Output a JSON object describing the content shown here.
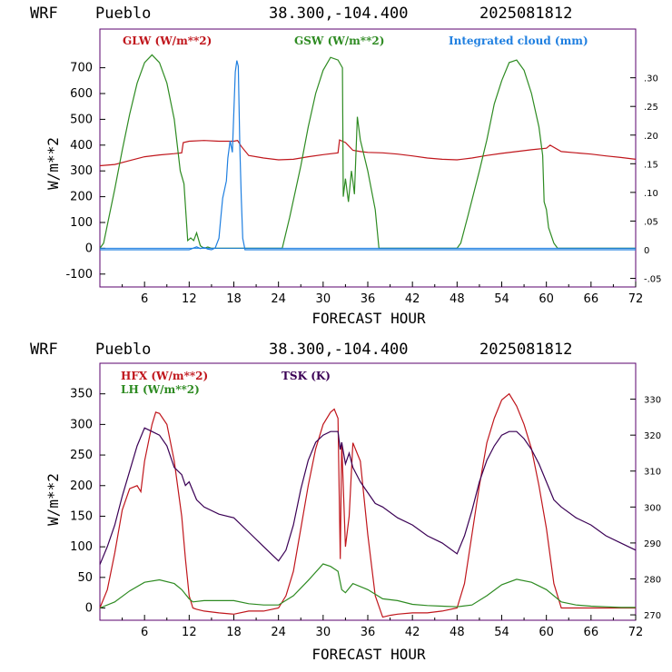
{
  "panel1": {
    "model": "WRF",
    "station": "Pueblo",
    "coords": "38.300,-104.400",
    "run": "2025081812",
    "frame_color": "#5a006e",
    "legend": [
      {
        "label": "GLW (W/m**2)",
        "color": "#c0161c"
      },
      {
        "label": "GSW (W/m**2)",
        "color": "#2e8b22"
      },
      {
        "label": "Integrated cloud (mm)",
        "color": "#1f7fe0"
      }
    ],
    "xlabel": "FORECAST HOUR",
    "ylabel": "W/m**2",
    "xticks": [
      "6",
      "12",
      "18",
      "24",
      "30",
      "36",
      "42",
      "48",
      "54",
      "60",
      "66",
      "72"
    ],
    "yticks": [
      "700",
      "600",
      "500",
      "400",
      "300",
      "200",
      "100",
      "0",
      "-100"
    ],
    "rticks": [
      ".30",
      ".25",
      ".20",
      ".15",
      ".10",
      ".05",
      "0",
      "-.05"
    ]
  },
  "panel2": {
    "model": "WRF",
    "station": "Pueblo",
    "coords": "38.300,-104.400",
    "run": "2025081812",
    "frame_color": "#5a006e",
    "legend": [
      {
        "label": "HFX (W/m**2)",
        "color": "#c0161c"
      },
      {
        "label": "LH  (W/m**2)",
        "color": "#2e8b22"
      },
      {
        "label": "TSK (K)",
        "color": "#3a0055"
      }
    ],
    "xlabel": "FORECAST HOUR",
    "ylabel": "W/m**2",
    "xticks": [
      "6",
      "12",
      "18",
      "24",
      "30",
      "36",
      "42",
      "48",
      "54",
      "60",
      "66",
      "72"
    ],
    "yticks": [
      "350",
      "300",
      "250",
      "200",
      "150",
      "100",
      "50",
      "0"
    ],
    "rticks": [
      "330",
      "320",
      "310",
      "300",
      "290",
      "280",
      "270"
    ]
  },
  "chart_data": [
    {
      "type": "line",
      "title": "WRF Pueblo 38.300,-104.400 2025081812",
      "xlabel": "FORECAST HOUR",
      "ylabel": "W/m**2",
      "xlim": [
        0,
        72
      ],
      "ylim": [
        -150,
        850
      ],
      "y2lim": [
        -0.065,
        0.385
      ],
      "series": [
        {
          "name": "GLW (W/m**2)",
          "axis": "left",
          "color": "#c0161c",
          "x": [
            0,
            2,
            4,
            6,
            8,
            10,
            11,
            11.2,
            12,
            14,
            16,
            18,
            18.5,
            19,
            20,
            22,
            24,
            26,
            28,
            30,
            32,
            32.2,
            33,
            34,
            35,
            36,
            38,
            40,
            42,
            44,
            46,
            48,
            50,
            52,
            54,
            56,
            58,
            60,
            60.5,
            62,
            64,
            66,
            68,
            70,
            72
          ],
          "y": [
            320,
            325,
            340,
            355,
            362,
            367,
            370,
            410,
            415,
            418,
            415,
            415,
            418,
            395,
            360,
            350,
            343,
            345,
            355,
            363,
            370,
            420,
            410,
            380,
            375,
            372,
            370,
            365,
            358,
            350,
            345,
            343,
            350,
            360,
            368,
            375,
            382,
            388,
            400,
            375,
            370,
            365,
            358,
            352,
            345
          ]
        },
        {
          "name": "GSW (W/m**2)",
          "axis": "left",
          "color": "#2e8b22",
          "x": [
            0,
            0.5,
            1,
            2,
            3,
            4,
            5,
            6,
            7,
            8,
            9,
            10,
            10.8,
            11.3,
            11.8,
            12.2,
            12.6,
            13,
            13.5,
            14,
            14.5,
            15,
            16,
            18,
            20,
            22,
            23.5,
            24.5,
            25.5,
            27,
            28,
            29,
            30,
            31,
            32,
            32.6,
            32.7,
            33,
            33.4,
            33.8,
            34,
            34.2,
            34.6,
            35,
            36,
            37,
            37.5,
            48,
            48.5,
            49.5,
            51,
            52,
            53,
            54,
            55,
            56,
            57,
            58,
            59,
            59.5,
            59.7,
            60,
            60.3,
            61,
            61.5,
            72
          ],
          "y": [
            0,
            20,
            90,
            230,
            380,
            520,
            640,
            720,
            750,
            720,
            640,
            500,
            300,
            250,
            30,
            40,
            30,
            60,
            10,
            0,
            5,
            0,
            0,
            0,
            0,
            0,
            0,
            0,
            120,
            320,
            470,
            600,
            690,
            740,
            730,
            700,
            200,
            270,
            180,
            300,
            260,
            210,
            510,
            420,
            300,
            150,
            0,
            0,
            20,
            130,
            300,
            420,
            560,
            650,
            720,
            730,
            690,
            600,
            470,
            360,
            180,
            150,
            80,
            20,
            0,
            0
          ]
        },
        {
          "name": "Integrated cloud (mm)",
          "axis": "right",
          "color": "#1f7fe0",
          "x": [
            0,
            12,
            13,
            13.5,
            14,
            14.5,
            15,
            15.5,
            16,
            16.2,
            16.5,
            17,
            17.2,
            17.5,
            17.8,
            18,
            18.2,
            18.4,
            18.6,
            18.8,
            19,
            19.2,
            19.5,
            72
          ],
          "y": [
            0,
            0,
            0.005,
            0.002,
            0.004,
            0.001,
            0.0,
            0.003,
            0.02,
            0.05,
            0.09,
            0.12,
            0.16,
            0.19,
            0.17,
            0.24,
            0.31,
            0.33,
            0.32,
            0.18,
            0.09,
            0.02,
            0,
            0
          ]
        }
      ],
      "right_axis_label": ""
    },
    {
      "type": "line",
      "title": "WRF Pueblo 38.300,-104.400 2025081812",
      "xlabel": "FORECAST HOUR",
      "ylabel": "W/m**2",
      "xlim": [
        0,
        72
      ],
      "ylim": [
        -20,
        400
      ],
      "y2lim": [
        268.5,
        340
      ],
      "series": [
        {
          "name": "HFX (W/m**2)",
          "axis": "left",
          "color": "#c0161c",
          "x": [
            0,
            1,
            2,
            3,
            4,
            5,
            5.5,
            6,
            7,
            7.5,
            8,
            9,
            10,
            11,
            11.5,
            12,
            12.5,
            13,
            14,
            16,
            18,
            20,
            22,
            24,
            25,
            26,
            27,
            28,
            29,
            30,
            31,
            31.5,
            32,
            32.3,
            32.5,
            33,
            33.5,
            34,
            35,
            36,
            37,
            38,
            39,
            40,
            42,
            44,
            46,
            48,
            49,
            50,
            51,
            52,
            53,
            54,
            55,
            56,
            57,
            58,
            59,
            60,
            61,
            62,
            66,
            70,
            72
          ],
          "y": [
            0,
            30,
            90,
            160,
            195,
            200,
            190,
            240,
            300,
            320,
            318,
            300,
            240,
            150,
            80,
            20,
            0,
            -2,
            -5,
            -8,
            -10,
            -5,
            -5,
            0,
            20,
            60,
            130,
            200,
            260,
            300,
            320,
            325,
            310,
            80,
            270,
            100,
            150,
            270,
            240,
            120,
            20,
            -15,
            -12,
            -10,
            -8,
            -8,
            -5,
            0,
            40,
            120,
            200,
            270,
            310,
            340,
            350,
            330,
            300,
            260,
            200,
            130,
            40,
            0,
            0,
            0,
            0
          ]
        },
        {
          "name": "LH  (W/m**2)",
          "axis": "left",
          "color": "#2e8b22",
          "x": [
            0,
            2,
            4,
            6,
            8,
            10,
            11,
            12,
            12.5,
            14,
            16,
            18,
            20,
            22,
            24,
            26,
            28,
            30,
            31,
            32,
            32.5,
            33,
            34,
            36,
            38,
            40,
            42,
            44,
            46,
            48,
            50,
            52,
            54,
            56,
            58,
            60,
            62,
            64,
            66,
            68,
            70,
            72
          ],
          "y": [
            0,
            10,
            28,
            42,
            46,
            40,
            30,
            15,
            10,
            12,
            12,
            12,
            7,
            5,
            5,
            20,
            45,
            72,
            68,
            60,
            30,
            25,
            40,
            30,
            15,
            12,
            6,
            4,
            3,
            2,
            5,
            20,
            38,
            47,
            42,
            30,
            10,
            5,
            3,
            2,
            1,
            1
          ]
        },
        {
          "name": "TSK (K)",
          "axis": "right",
          "color": "#3a0055",
          "x": [
            0,
            1,
            2,
            3,
            4,
            5,
            6,
            7,
            8,
            9,
            10,
            11,
            11.5,
            12,
            13,
            14,
            16,
            18,
            20,
            22,
            24,
            25,
            26,
            27,
            28,
            29,
            30,
            31,
            32,
            32.3,
            32.5,
            33,
            33.5,
            34,
            35,
            36,
            37,
            38,
            40,
            42,
            44,
            46,
            48,
            49,
            50,
            51,
            52,
            53,
            54,
            55,
            56,
            57,
            58,
            59,
            60,
            61,
            62,
            64,
            66,
            68,
            70,
            72
          ],
          "y": [
            284,
            289,
            295,
            303,
            310,
            317,
            322,
            321,
            320,
            317,
            311,
            309,
            306,
            307,
            302,
            300,
            298,
            297,
            293,
            289,
            285,
            288,
            295,
            305,
            313,
            318,
            320,
            321,
            321,
            316,
            318,
            312,
            315,
            311,
            307,
            304,
            301,
            300,
            297,
            295,
            292,
            290,
            287,
            292,
            299,
            307,
            313,
            317,
            320,
            321,
            321,
            319,
            316,
            312,
            307,
            302,
            300,
            297,
            295,
            292,
            290,
            288
          ]
        }
      ]
    }
  ]
}
